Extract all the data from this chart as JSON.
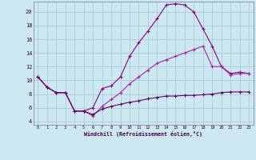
{
  "xlabel": "Windchill (Refroidissement éolien,°C)",
  "background_color": "#cce8f0",
  "grid_color": "#aaccd8",
  "xlim": [
    -0.5,
    23.5
  ],
  "ylim": [
    3.5,
    21.5
  ],
  "xticks": [
    0,
    1,
    2,
    3,
    4,
    5,
    6,
    7,
    8,
    9,
    10,
    11,
    12,
    13,
    14,
    15,
    16,
    17,
    18,
    19,
    20,
    21,
    22,
    23
  ],
  "yticks": [
    4,
    6,
    8,
    10,
    12,
    14,
    16,
    18,
    20
  ],
  "series1_x": [
    0,
    1,
    2,
    3,
    4,
    5,
    6,
    7,
    8,
    9,
    10,
    11,
    12,
    13,
    14,
    15,
    16,
    17,
    18,
    19,
    20,
    21,
    22,
    23
  ],
  "series1_y": [
    10.5,
    9.0,
    8.2,
    8.2,
    5.5,
    5.5,
    6.0,
    8.8,
    9.2,
    10.5,
    13.5,
    15.5,
    17.2,
    19.0,
    21.0,
    21.2,
    21.0,
    20.0,
    17.5,
    15.0,
    12.0,
    11.0,
    11.2,
    11.0
  ],
  "series2_x": [
    0,
    1,
    2,
    3,
    4,
    5,
    6,
    7,
    8,
    9,
    10,
    11,
    12,
    13,
    14,
    15,
    16,
    17,
    18,
    19,
    20,
    21,
    22,
    23
  ],
  "series2_y": [
    10.5,
    9.0,
    8.2,
    8.2,
    5.5,
    5.5,
    4.8,
    6.2,
    7.2,
    8.2,
    9.5,
    10.5,
    11.5,
    12.5,
    13.0,
    13.5,
    14.0,
    14.5,
    15.0,
    12.0,
    12.0,
    10.8,
    11.0,
    11.0
  ],
  "series3_x": [
    0,
    1,
    2,
    3,
    4,
    5,
    6,
    7,
    8,
    9,
    10,
    11,
    12,
    13,
    14,
    15,
    16,
    17,
    18,
    19,
    20,
    21,
    22,
    23
  ],
  "series3_y": [
    10.5,
    9.0,
    8.2,
    8.2,
    5.5,
    5.5,
    5.0,
    5.8,
    6.2,
    6.5,
    6.8,
    7.0,
    7.3,
    7.5,
    7.7,
    7.7,
    7.8,
    7.8,
    7.9,
    8.0,
    8.2,
    8.3,
    8.3,
    8.3
  ],
  "line_color": "#880088",
  "line_color2": "#aa22aa",
  "line_color3": "#660066"
}
